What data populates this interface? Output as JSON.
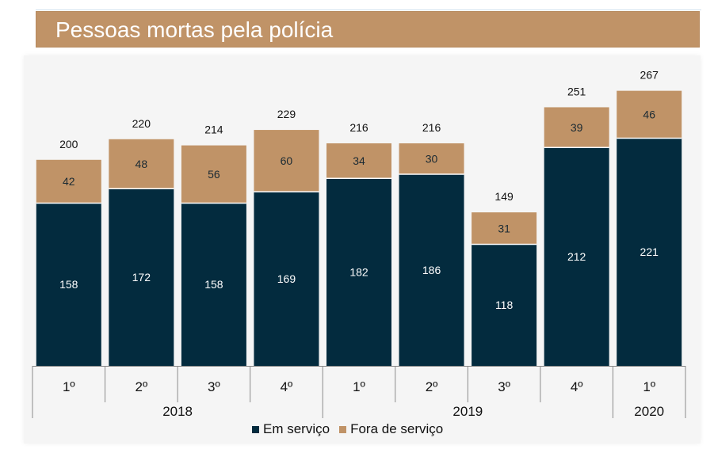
{
  "title": "Pessoas mortas pela polícia",
  "chart_data": {
    "type": "bar",
    "stacked": true,
    "title": "Pessoas mortas pela polícia",
    "categories": [
      "1º",
      "2º",
      "3º",
      "4º",
      "1º",
      "2º",
      "3º",
      "4º",
      "1º"
    ],
    "groups": [
      {
        "label": "2018",
        "count": 4
      },
      {
        "label": "2019",
        "count": 4
      },
      {
        "label": "2020",
        "count": 1
      }
    ],
    "series": [
      {
        "name": "Em serviço",
        "color": "#032b3e",
        "values": [
          158,
          172,
          158,
          169,
          182,
          186,
          118,
          212,
          221
        ]
      },
      {
        "name": "Fora de serviço",
        "color": "#c09367",
        "values": [
          42,
          48,
          56,
          60,
          34,
          30,
          31,
          39,
          46
        ]
      }
    ],
    "totals": [
      200,
      220,
      214,
      229,
      216,
      216,
      149,
      251,
      267
    ],
    "ylim": [
      0,
      267
    ],
    "grid": false,
    "legend_position": "bottom"
  }
}
